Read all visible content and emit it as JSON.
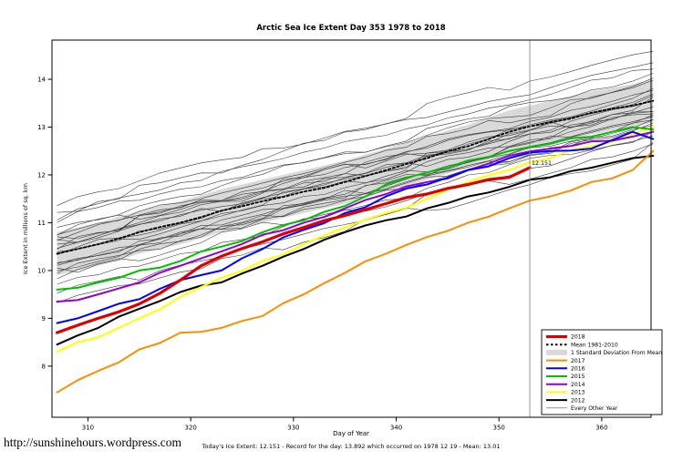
{
  "page": {
    "url_text": "http://sunshinehours.wordpress.com",
    "caption": "Today's Ice Extent: 12.151 - Record for the day: 13.892 which occurred on 1978 12 19 - Mean: 13.01"
  },
  "chart_data": {
    "type": "line",
    "title": "Arctic Sea Ice Extent Day 353 1978 to 2018",
    "xlabel": "Day of Year",
    "ylabel": "Ice Extent in millions of sq. km",
    "x_ticks": [
      310,
      320,
      330,
      340,
      350,
      360
    ],
    "y_ticks": [
      8,
      9,
      10,
      11,
      12,
      13,
      14
    ],
    "x_range": [
      306.5,
      364.8
    ],
    "y_range": [
      6.93,
      14.82
    ],
    "grid": false,
    "legend_position": "bottom-right",
    "marker_day": 353,
    "annotation": {
      "text": "12.151",
      "day": 353,
      "value": 12.151,
      "color": "#cc0000"
    },
    "x": [
      307,
      311,
      315,
      319,
      323,
      327,
      331,
      335,
      339,
      343,
      347,
      351,
      355,
      359,
      363,
      365
    ],
    "band": {
      "name": "1 Standard Deviation From Mean",
      "color": "#d9d9d9",
      "upper": [
        10.8,
        11.0,
        11.25,
        11.45,
        11.7,
        11.9,
        12.1,
        12.3,
        12.55,
        12.8,
        13.05,
        13.35,
        13.55,
        13.75,
        13.9,
        14.0
      ],
      "lower": [
        9.9,
        10.1,
        10.35,
        10.55,
        10.8,
        11.0,
        11.2,
        11.4,
        11.65,
        11.9,
        12.15,
        12.45,
        12.65,
        12.85,
        13.0,
        13.1
      ]
    },
    "series": [
      {
        "name": "Mean 1981-2010",
        "color": "#000000",
        "width": 1.8,
        "dash": "2.5,2.5",
        "values": [
          10.35,
          10.55,
          10.8,
          11.0,
          11.25,
          11.45,
          11.65,
          11.85,
          12.1,
          12.35,
          12.6,
          12.9,
          13.1,
          13.3,
          13.45,
          13.55
        ]
      },
      {
        "name": "2012",
        "color": "#000000",
        "width": 2,
        "values": [
          8.45,
          8.8,
          9.2,
          9.55,
          9.75,
          10.1,
          10.45,
          10.8,
          11.05,
          11.3,
          11.55,
          11.75,
          11.95,
          12.15,
          12.35,
          12.4
        ]
      },
      {
        "name": "2013",
        "color": "#ffff00",
        "width": 2,
        "values": [
          8.3,
          8.6,
          9.0,
          9.45,
          9.85,
          10.2,
          10.55,
          10.9,
          11.2,
          11.5,
          11.85,
          12.1,
          12.35,
          12.6,
          12.85,
          13.0
        ]
      },
      {
        "name": "2014",
        "color": "#9400d3",
        "width": 2,
        "values": [
          9.35,
          9.5,
          9.75,
          10.1,
          10.4,
          10.75,
          11.0,
          11.3,
          11.6,
          11.85,
          12.1,
          12.4,
          12.55,
          12.7,
          12.8,
          12.9
        ]
      },
      {
        "name": "2015",
        "color": "#00c000",
        "width": 2,
        "values": [
          9.6,
          9.75,
          10.0,
          10.2,
          10.5,
          10.8,
          11.05,
          11.35,
          11.8,
          12.05,
          12.3,
          12.5,
          12.65,
          12.8,
          13.0,
          12.95
        ]
      },
      {
        "name": "2016",
        "color": "#0000ff",
        "width": 2,
        "values": [
          8.9,
          9.15,
          9.4,
          9.8,
          10.0,
          10.45,
          10.85,
          11.2,
          11.55,
          11.8,
          12.1,
          12.35,
          12.5,
          12.55,
          12.9,
          12.75
        ]
      },
      {
        "name": "2017",
        "color": "#ff8c00",
        "width": 2,
        "values": [
          7.45,
          7.9,
          8.35,
          8.7,
          8.8,
          9.05,
          9.5,
          9.95,
          10.35,
          10.7,
          11.0,
          11.3,
          11.55,
          11.85,
          12.1,
          12.5
        ]
      },
      {
        "name": "2018",
        "color": "#dd0000",
        "width": 3.2,
        "x": [
          307,
          311,
          315,
          319,
          323,
          327,
          331,
          335,
          339,
          343,
          347,
          351,
          353
        ],
        "values": [
          8.7,
          9.0,
          9.3,
          9.8,
          10.3,
          10.6,
          10.9,
          11.15,
          11.4,
          11.6,
          11.8,
          11.95,
          12.151
        ]
      }
    ],
    "other_years": {
      "name": "Every Other Year",
      "color": "#3a3a3a",
      "width": 0.6,
      "lines": [
        [
          9.3,
          12.55
        ],
        [
          9.5,
          12.7
        ],
        [
          9.7,
          12.8
        ],
        [
          9.85,
          12.9
        ],
        [
          9.95,
          13.0
        ],
        [
          10.0,
          13.05
        ],
        [
          10.05,
          13.1
        ],
        [
          10.1,
          13.15
        ],
        [
          10.15,
          13.2
        ],
        [
          10.2,
          13.25
        ],
        [
          10.3,
          13.3
        ],
        [
          10.35,
          13.35
        ],
        [
          10.4,
          13.4
        ],
        [
          10.45,
          13.45
        ],
        [
          10.5,
          13.5
        ],
        [
          10.55,
          13.55
        ],
        [
          10.6,
          13.6
        ],
        [
          10.65,
          13.65
        ],
        [
          10.7,
          13.7
        ],
        [
          10.75,
          13.75
        ],
        [
          10.85,
          13.85
        ],
        [
          10.95,
          13.95
        ],
        [
          11.05,
          14.05
        ],
        [
          11.15,
          14.2
        ],
        [
          11.25,
          14.4
        ],
        [
          11.35,
          14.65
        ]
      ]
    },
    "legend": [
      {
        "label": "2018",
        "color": "#dd0000",
        "style": "thick"
      },
      {
        "label": "Mean 1981-2010",
        "color": "#000000",
        "style": "dotted"
      },
      {
        "label": "1 Standard Deviation From Mean",
        "color": "#d9d9d9",
        "style": "band"
      },
      {
        "label": "2017",
        "color": "#ff8c00",
        "style": "line"
      },
      {
        "label": "2016",
        "color": "#0000ff",
        "style": "line"
      },
      {
        "label": "2015",
        "color": "#00c000",
        "style": "line"
      },
      {
        "label": "2014",
        "color": "#9400d3",
        "style": "line"
      },
      {
        "label": "2013",
        "color": "#ffff00",
        "style": "line"
      },
      {
        "label": "2012",
        "color": "#000000",
        "style": "line"
      },
      {
        "label": "Every Other Year",
        "color": "#555555",
        "style": "thin"
      }
    ]
  }
}
